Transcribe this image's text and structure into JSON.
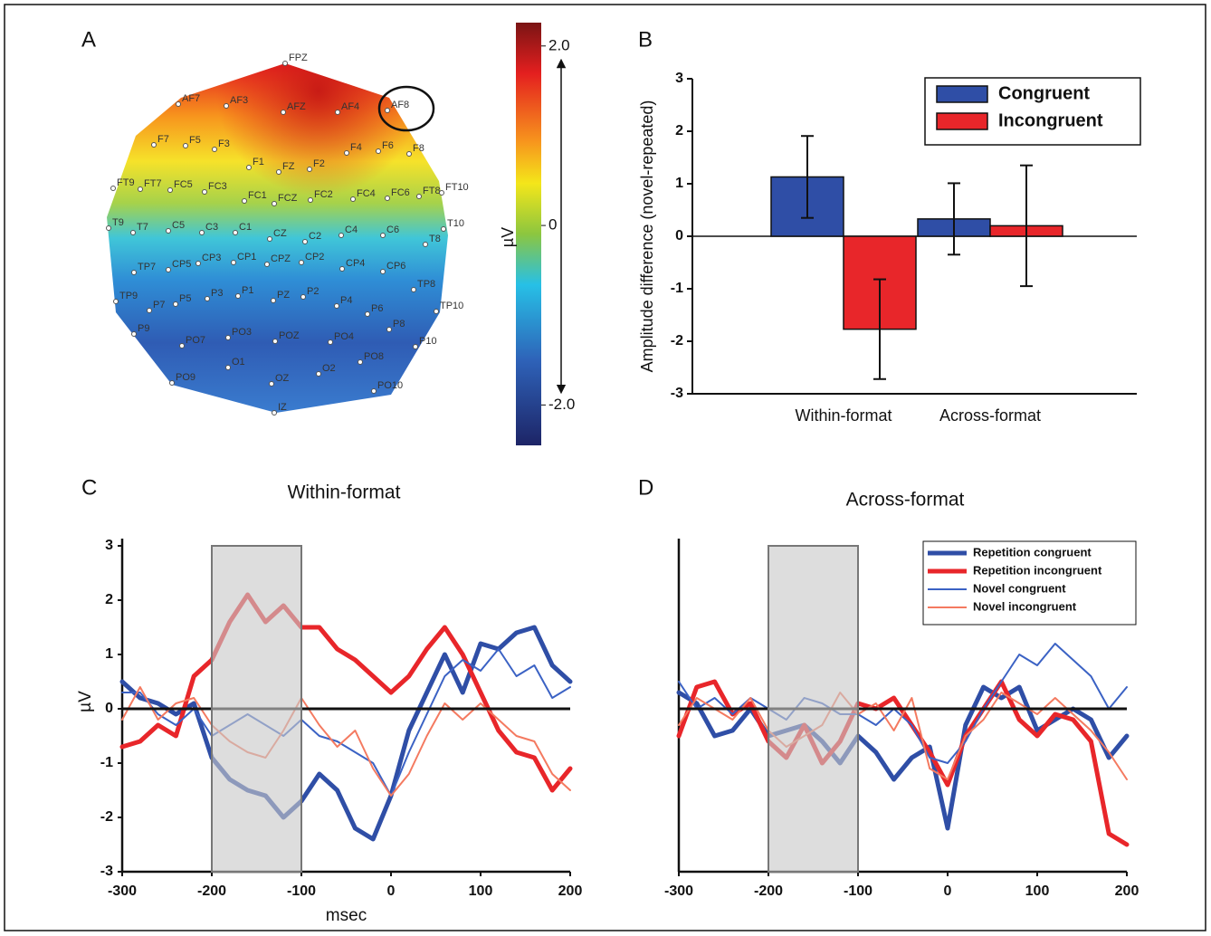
{
  "chart_data": [
    {
      "type": "topomap",
      "label": "A",
      "electrodes": [
        "FPZ",
        "AF7",
        "AF3",
        "AFZ",
        "AF4",
        "AF8",
        "F7",
        "F5",
        "F3",
        "F4",
        "F6",
        "F8",
        "F1",
        "FZ",
        "F2",
        "FT9",
        "FT7",
        "FC5",
        "FC3",
        "FC1",
        "FCZ",
        "FC2",
        "FC4",
        "FC6",
        "FT8",
        "FT10",
        "T9",
        "T7",
        "C5",
        "C3",
        "C1",
        "CZ",
        "C2",
        "C4",
        "C6",
        "T10",
        "T8",
        "TP7",
        "CP5",
        "CP3",
        "CP1",
        "CPZ",
        "CP2",
        "CP4",
        "CP6",
        "TP9",
        "P7",
        "P5",
        "P3",
        "P1",
        "PZ",
        "P2",
        "P4",
        "P6",
        "TP8",
        "TP10",
        "P9",
        "P8",
        "PO3",
        "POZ",
        "PO4",
        "PO7",
        "PO8",
        "P10",
        "O1",
        "O2",
        "PO9",
        "OZ",
        "PO10",
        "IZ"
      ],
      "colorbar": {
        "label": "µV",
        "clim": [
          -2.45,
          2.26
        ],
        "ticks": [
          {
            "value": 2,
            "label": "2.0"
          },
          0,
          {
            "value": -2,
            "label": "-2.0"
          }
        ]
      }
    },
    {
      "type": "bar",
      "label": "B",
      "ylabel": "Amplitude difference (novel-repeated)",
      "categories": [
        "Within-format",
        "Across-format"
      ],
      "series": [
        {
          "name": "Congruent",
          "color": "#2f4ea6",
          "values": [
            1.13,
            0.33
          ],
          "errors": [
            0.78,
            0.68
          ]
        },
        {
          "name": "Incongruent",
          "color": "#e8262a",
          "values": [
            -1.77,
            0.2
          ],
          "errors": [
            0.95,
            1.15
          ]
        }
      ],
      "ylim": [
        -3,
        3
      ],
      "yticks": [
        -3,
        -2,
        -1,
        0,
        1,
        2,
        3
      ],
      "legend": "upper right"
    },
    {
      "type": "line",
      "label": "C",
      "title": "Within-format",
      "xlabel": "msec",
      "ylabel": "µV",
      "x": [
        -300,
        -280,
        -260,
        -240,
        -220,
        -200,
        -180,
        -160,
        -140,
        -120,
        -100,
        -80,
        -60,
        -40,
        -20,
        0,
        20,
        40,
        60,
        80,
        100,
        120,
        140,
        160,
        180,
        200
      ],
      "series": [
        {
          "color": "#2f4ea6",
          "width": 5,
          "values": [
            0.5,
            0.2,
            0.1,
            -0.1,
            0.1,
            -0.9,
            -1.3,
            -1.5,
            -1.6,
            -2.0,
            -1.7,
            -1.2,
            -1.5,
            -2.2,
            -2.4,
            -1.6,
            -0.4,
            0.3,
            1.0,
            0.3,
            1.2,
            1.1,
            1.4,
            1.5,
            0.8,
            0.5
          ]
        },
        {
          "color": "#e8262a",
          "width": 5,
          "values": [
            -0.7,
            -0.6,
            -0.3,
            -0.5,
            0.6,
            0.9,
            1.6,
            2.1,
            1.6,
            1.9,
            1.5,
            1.5,
            1.1,
            0.9,
            0.6,
            0.3,
            0.6,
            1.1,
            1.5,
            1.0,
            0.3,
            -0.4,
            -0.8,
            -0.9,
            -1.5,
            -1.1
          ]
        },
        {
          "color": "#3b62c4",
          "width": 2,
          "values": [
            0.3,
            0.3,
            -0.1,
            -0.3,
            0.0,
            -0.5,
            -0.3,
            -0.1,
            -0.3,
            -0.5,
            -0.2,
            -0.5,
            -0.6,
            -0.8,
            -1.0,
            -1.6,
            -0.8,
            -0.1,
            0.6,
            0.9,
            0.7,
            1.1,
            0.6,
            0.8,
            0.2,
            0.4
          ]
        },
        {
          "color": "#f47a60",
          "width": 2,
          "values": [
            -0.2,
            0.4,
            -0.2,
            0.1,
            0.2,
            -0.3,
            -0.6,
            -0.8,
            -0.9,
            -0.4,
            0.2,
            -0.3,
            -0.7,
            -0.4,
            -1.1,
            -1.6,
            -1.2,
            -0.5,
            0.1,
            -0.2,
            0.1,
            -0.2,
            -0.5,
            -0.6,
            -1.2,
            -1.5
          ]
        }
      ],
      "xlim": [
        -300,
        200
      ],
      "xticks": [
        -300,
        -200,
        -100,
        0,
        100,
        200
      ],
      "ylim": [
        -3,
        3
      ],
      "yticks": [
        -3,
        -2,
        -1,
        0,
        1,
        2,
        3
      ],
      "shade": [
        -200,
        -100
      ]
    },
    {
      "type": "line",
      "label": "D",
      "title": "Across-format",
      "x": [
        -300,
        -280,
        -260,
        -240,
        -220,
        -200,
        -180,
        -160,
        -140,
        -120,
        -100,
        -80,
        -60,
        -40,
        -20,
        0,
        20,
        40,
        60,
        80,
        100,
        120,
        140,
        160,
        180,
        200
      ],
      "series": [
        {
          "name": "Repetition congruent",
          "color": "#2f4ea6",
          "width": 5,
          "values": [
            0.3,
            0.1,
            -0.5,
            -0.4,
            0.0,
            -0.5,
            -0.4,
            -0.3,
            -0.6,
            -1.0,
            -0.5,
            -0.8,
            -1.3,
            -0.9,
            -0.7,
            -2.2,
            -0.3,
            0.4,
            0.2,
            0.4,
            -0.4,
            -0.2,
            0.0,
            -0.2,
            -0.9,
            -0.5
          ]
        },
        {
          "name": "Repetition incongruent",
          "color": "#e8262a",
          "width": 5,
          "values": [
            -0.5,
            0.4,
            0.5,
            -0.1,
            0.1,
            -0.6,
            -0.9,
            -0.3,
            -1.0,
            -0.6,
            0.1,
            0.0,
            0.2,
            -0.3,
            -0.8,
            -1.4,
            -0.5,
            0.0,
            0.5,
            -0.2,
            -0.5,
            -0.1,
            -0.2,
            -0.6,
            -2.3,
            -2.5
          ]
        },
        {
          "name": "Novel congruent",
          "color": "#3b62c4",
          "width": 2,
          "values": [
            0.5,
            0.0,
            0.2,
            -0.1,
            0.2,
            0.0,
            -0.2,
            0.2,
            0.1,
            -0.1,
            -0.1,
            -0.3,
            0.0,
            -0.3,
            -0.9,
            -1.0,
            -0.6,
            0.0,
            0.5,
            1.0,
            0.8,
            1.2,
            0.9,
            0.6,
            0.0,
            0.4
          ]
        },
        {
          "name": "Novel incongruent",
          "color": "#f47a60",
          "width": 2,
          "values": [
            -0.3,
            0.2,
            0.0,
            -0.2,
            0.2,
            -0.4,
            -0.7,
            -0.5,
            -0.3,
            0.3,
            -0.1,
            0.1,
            -0.4,
            0.2,
            -1.1,
            -1.3,
            -0.5,
            -0.2,
            0.3,
            0.1,
            -0.1,
            0.2,
            -0.1,
            -0.4,
            -0.8,
            -1.3
          ]
        }
      ],
      "xlim": [
        -300,
        200
      ],
      "xticks": [
        -300,
        -200,
        -100,
        0,
        100,
        200
      ],
      "ylim": [
        -3,
        3
      ],
      "shade": [
        -200,
        -100
      ],
      "legend": "upper right"
    }
  ]
}
